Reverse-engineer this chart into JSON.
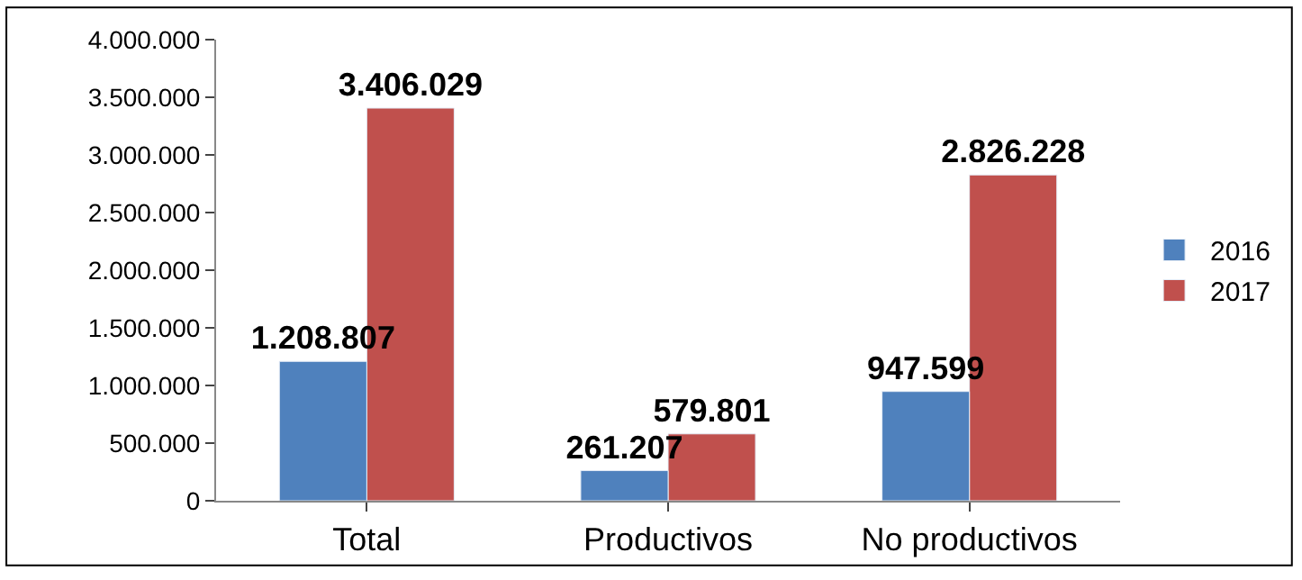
{
  "chart_data": {
    "type": "bar",
    "categories": [
      "Total",
      "Productivos",
      "No productivos"
    ],
    "series": [
      {
        "name": "2016",
        "color": "#4f81bd",
        "values": [
          1208807,
          261207,
          947599
        ],
        "value_labels": [
          "1.208.807",
          "261.207",
          "947.599"
        ]
      },
      {
        "name": "2017",
        "color": "#c0504d",
        "values": [
          3406029,
          579801,
          2826228
        ],
        "value_labels": [
          "3.406.029",
          "579.801",
          "2.826.228"
        ]
      }
    ],
    "ylim": [
      0,
      4000000
    ],
    "yticks": [
      {
        "value": 0,
        "label": "0"
      },
      {
        "value": 500000,
        "label": "500.000"
      },
      {
        "value": 1000000,
        "label": "1.000.000"
      },
      {
        "value": 1500000,
        "label": "1.500.000"
      },
      {
        "value": 2000000,
        "label": "2.000.000"
      },
      {
        "value": 2500000,
        "label": "2.500.000"
      },
      {
        "value": 3000000,
        "label": "3.000.000"
      },
      {
        "value": 3500000,
        "label": "3.500.000"
      },
      {
        "value": 4000000,
        "label": "4.000.000"
      }
    ],
    "legend": "right"
  }
}
